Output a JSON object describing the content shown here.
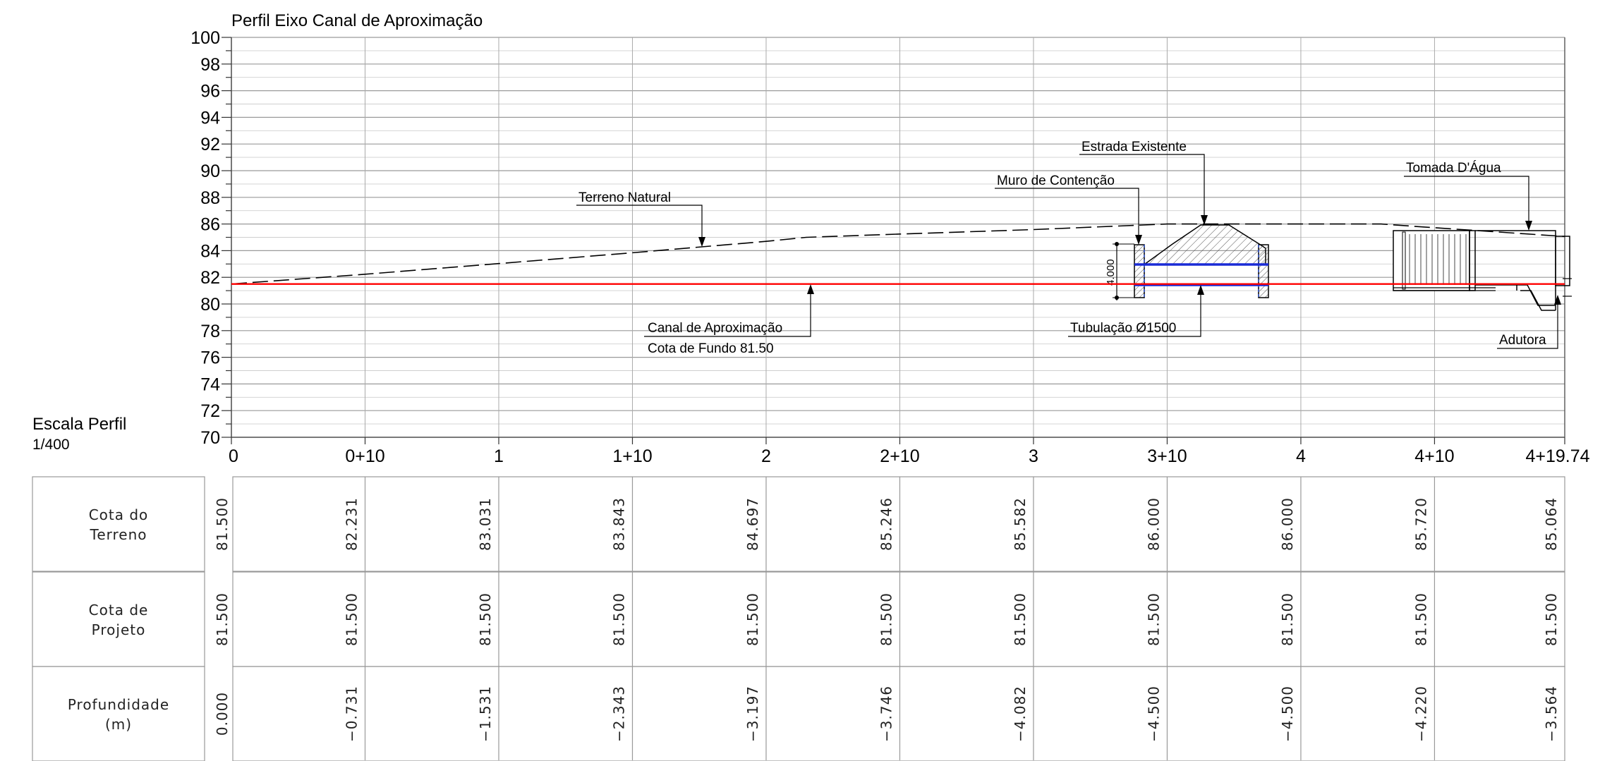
{
  "drawing": {
    "title": "Perfil Eixo Canal de Aproximação",
    "scale_label": "Escala Perfil",
    "scale_value": "1/400"
  },
  "chart_data": {
    "type": "line",
    "title": "Perfil Eixo Canal de Aproximação",
    "xlabel": "",
    "ylabel": "",
    "ylim": [
      70,
      100
    ],
    "y_tick_step": 2,
    "xlim": [
      0,
      99.74
    ],
    "x_ticks": [
      {
        "x": 0,
        "label": "0"
      },
      {
        "x": 10,
        "label": "0+10"
      },
      {
        "x": 20,
        "label": "1"
      },
      {
        "x": 30,
        "label": "1+10"
      },
      {
        "x": 40,
        "label": "2"
      },
      {
        "x": 50,
        "label": "2+10"
      },
      {
        "x": 60,
        "label": "3"
      },
      {
        "x": 70,
        "label": "3+10"
      },
      {
        "x": 80,
        "label": "4"
      },
      {
        "x": 90,
        "label": "4+10"
      },
      {
        "x": 99.74,
        "label": "4+19.74"
      }
    ],
    "grid": true,
    "series": [
      {
        "name": "Terreno Natural",
        "style": "dashed",
        "color": "#000000",
        "x": [
          0,
          10,
          20,
          30,
          40,
          43,
          50,
          60,
          70,
          80,
          86,
          90,
          99.74
        ],
        "y": [
          81.5,
          82.231,
          83.031,
          83.843,
          84.697,
          85.0,
          85.246,
          85.582,
          86.0,
          86.0,
          86.0,
          85.72,
          85.064
        ]
      },
      {
        "name": "Canal de Aproximação",
        "style": "solid",
        "color": "#ff0000",
        "x": [
          0,
          99.74
        ],
        "y": [
          81.5,
          81.5
        ]
      }
    ],
    "annotations": [
      {
        "id": "terreno",
        "text": "Terreno Natural"
      },
      {
        "id": "canal_1",
        "text": "Canal de Aproximação"
      },
      {
        "id": "canal_2",
        "text": "Cota de Fundo 81.50"
      },
      {
        "id": "estrada",
        "text": "Estrada Existente"
      },
      {
        "id": "muro",
        "text": "Muro de Contenção"
      },
      {
        "id": "tubulacao",
        "text": "Tubulação Ø1500"
      },
      {
        "id": "tomada",
        "text": "Tomada D'Água"
      },
      {
        "id": "adutora",
        "text": "Adutora"
      },
      {
        "id": "dim",
        "text": "4.000"
      }
    ],
    "table": {
      "rows": [
        {
          "label_lines": [
            "Cota do",
            "Terreno"
          ],
          "values": [
            "81.500",
            "82.231",
            "83.031",
            "83.843",
            "84.697",
            "85.246",
            "85.582",
            "86.000",
            "86.000",
            "85.720",
            "85.064"
          ]
        },
        {
          "label_lines": [
            "Cota de",
            "Projeto"
          ],
          "values": [
            "81.500",
            "81.500",
            "81.500",
            "81.500",
            "81.500",
            "81.500",
            "81.500",
            "81.500",
            "81.500",
            "81.500",
            "81.500"
          ]
        },
        {
          "label_lines": [
            "Profundidade",
            "(m)"
          ],
          "values": [
            "0.000",
            "−0.731",
            "−1.531",
            "−2.343",
            "−3.197",
            "−3.746",
            "−4.082",
            "−4.500",
            "−4.500",
            "−4.220",
            "−3.564"
          ]
        }
      ]
    }
  }
}
